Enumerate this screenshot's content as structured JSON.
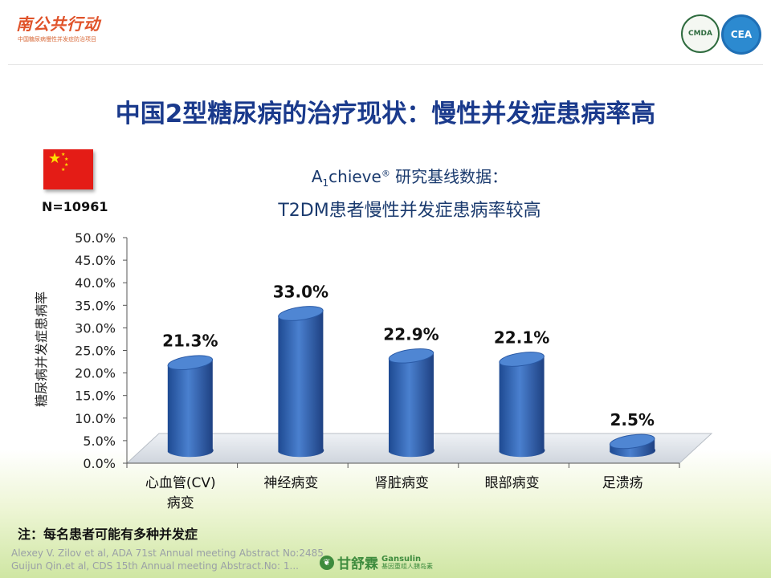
{
  "header": {
    "logo_text": "南公共行动",
    "logo_subtitle": "中国糖尿病慢性并发症防治项目",
    "badge_left": "CMDA",
    "badge_right": "CEA"
  },
  "slide_title": "中国2型糖尿病的治疗现状：慢性并发症患病率高",
  "sample_size": "N=10961",
  "chart_title": {
    "line1_prefix": "A",
    "line1_sub": "1",
    "line1_mid": "chieve",
    "line1_sup": "®",
    "line1_rest": " 研究基线数据：",
    "line2": "T2DM患者慢性并发症患病率较高"
  },
  "chart_data": {
    "type": "bar",
    "categories": [
      "心血管(CV)\n病变",
      "神经病变",
      "肾脏病变",
      "眼部病变",
      "足溃疡"
    ],
    "values": [
      21.3,
      33.0,
      22.9,
      22.1,
      2.5
    ],
    "value_labels": [
      "21.3%",
      "33.0%",
      "22.9%",
      "22.1%",
      "2.5%"
    ],
    "ylabel": "糖尿病并发症患病率",
    "ylim": [
      0,
      50
    ],
    "yticks": [
      0,
      5,
      10,
      15,
      20,
      25,
      30,
      35,
      40,
      45,
      50
    ],
    "ytick_labels": [
      "0.0%",
      "5.0%",
      "10.0%",
      "15.0%",
      "20.0%",
      "25.0%",
      "30.0%",
      "35.0%",
      "40.0%",
      "45.0%",
      "50.0%"
    ],
    "bar_color": "#2f62b0",
    "grid": false
  },
  "footnote": "注：每名患者可能有多种并发症",
  "references": [
    "Alexey V. Zilov  et al, ADA 71st Annual meeting Abstract No:2485",
    "Guijun Qin.et al, CDS 15th Annual meeting Abstract.No: 1..."
  ],
  "brand": {
    "name_cn": "甘舒霖",
    "name_en": "Gansulin",
    "tagline": "基因重组人胰岛素"
  },
  "colors": {
    "title": "#1a3a8c",
    "subtitle": "#1a3a6e",
    "bar": "#2f62b0",
    "logo": "#e0532a"
  }
}
